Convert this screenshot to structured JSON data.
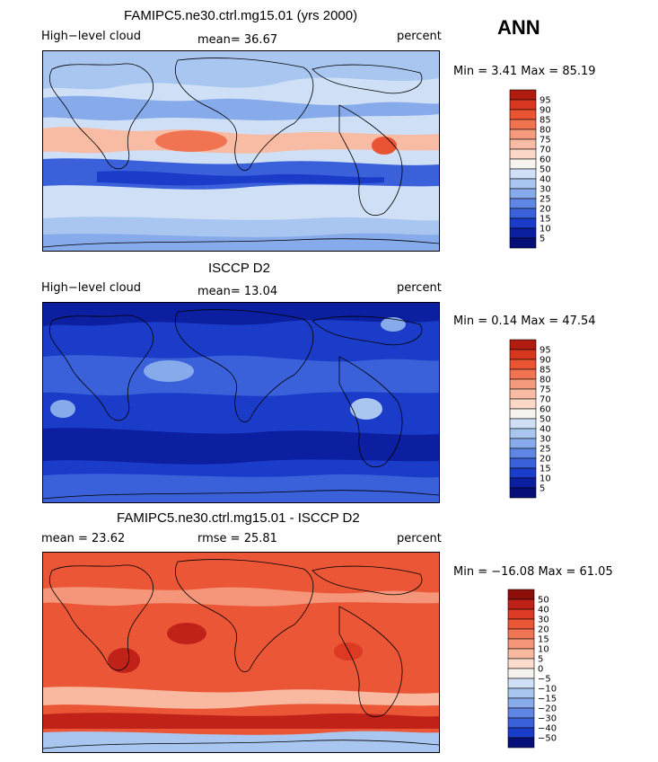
{
  "season": "ANN",
  "panels": [
    {
      "title": "FAMIPC5.ne30.ctrl.mg15.01 (yrs 2000)",
      "left_label": "High−level cloud",
      "mid_label": "mean=  36.67",
      "right_label": "percent",
      "minmax": "Min =    3.41  Max =   85.19",
      "scale": {
        "levels": [
          "95",
          "90",
          "85",
          "80",
          "75",
          "70",
          "60",
          "50",
          "40",
          "30",
          "25",
          "20",
          "15",
          "10",
          "5"
        ],
        "colors": [
          "#b01c10",
          "#d8371f",
          "#e95433",
          "#f07352",
          "#f59a7c",
          "#f8bba3",
          "#fbd8c8",
          "#f6f2ee",
          "#cfe0f6",
          "#a9c6f0",
          "#86aaea",
          "#5f86e4",
          "#3a60da",
          "#1b3cc8",
          "#0b1fa0",
          "#060e78"
        ]
      }
    },
    {
      "title": "ISCCP D2",
      "left_label": "High−level cloud",
      "mid_label": "mean=  13.04",
      "right_label": "percent",
      "minmax": "Min =    0.14  Max =   47.54",
      "scale": {
        "levels": [
          "95",
          "90",
          "85",
          "80",
          "75",
          "70",
          "60",
          "50",
          "40",
          "30",
          "25",
          "20",
          "15",
          "10",
          "5"
        ],
        "colors": [
          "#b01c10",
          "#d8371f",
          "#e95433",
          "#f07352",
          "#f59a7c",
          "#f8bba3",
          "#fbd8c8",
          "#f6f2ee",
          "#cfe0f6",
          "#a9c6f0",
          "#86aaea",
          "#5f86e4",
          "#3a60da",
          "#1b3cc8",
          "#0b1fa0",
          "#060e78"
        ]
      }
    },
    {
      "title": "FAMIPC5.ne30.ctrl.mg15.01 - ISCCP D2",
      "left_label": "mean =   23.62",
      "mid_label": "rmse =   25.81",
      "right_label": "percent",
      "minmax": "Min = −16.08  Max =   61.05",
      "scale": {
        "levels": [
          "50",
          "40",
          "30",
          "20",
          "15",
          "10",
          "5",
          "0",
          "−5",
          "−10",
          "−15",
          "−20",
          "−30",
          "−40",
          "−50"
        ],
        "colors": [
          "#8e0f0a",
          "#c0221a",
          "#dd3a24",
          "#ea5636",
          "#f07553",
          "#f5967a",
          "#f9b8a0",
          "#fcdccc",
          "#f6f2ee",
          "#cfe0f6",
          "#a9c6f0",
          "#86aaea",
          "#5f86e4",
          "#3a60da",
          "#1b3cc8",
          "#060e78"
        ]
      }
    }
  ]
}
